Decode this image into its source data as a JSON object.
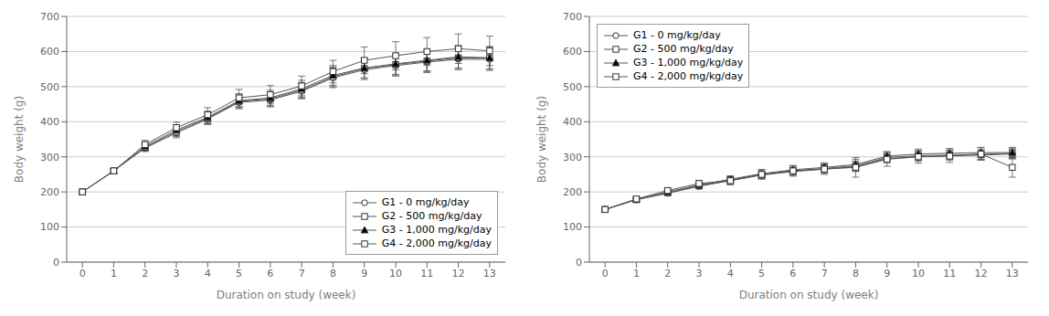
{
  "chart_data": [
    {
      "type": "line",
      "xlabel": "Duration on study (week)",
      "ylabel": "Body weight (g)",
      "x": [
        0,
        1,
        2,
        3,
        4,
        5,
        6,
        7,
        8,
        9,
        10,
        11,
        12,
        13
      ],
      "xlim": [
        -0.5,
        13.5
      ],
      "xticks": [
        0,
        1,
        2,
        3,
        4,
        5,
        6,
        7,
        8,
        9,
        10,
        11,
        12,
        13
      ],
      "ylim": [
        0,
        700
      ],
      "yticks": [
        0,
        100,
        200,
        300,
        400,
        500,
        600,
        700
      ],
      "grid": true,
      "legend": "lower right",
      "series": [
        {
          "name": "G1 - 0 mg/kg/day",
          "color": "#555555",
          "marker": "circle",
          "values": [
            200,
            260,
            325,
            368,
            408,
            455,
            462,
            487,
            525,
            548,
            560,
            570,
            578,
            578
          ],
          "errors": [
            2,
            6,
            10,
            14,
            16,
            18,
            20,
            22,
            28,
            28,
            30,
            30,
            30,
            32
          ]
        },
        {
          "name": "G2 - 500 mg/kg/day",
          "color": "#555555",
          "marker": "square",
          "values": [
            200,
            260,
            327,
            372,
            410,
            458,
            465,
            490,
            528,
            552,
            563,
            573,
            582,
            582
          ],
          "errors": [
            2,
            6,
            10,
            14,
            16,
            18,
            20,
            22,
            28,
            28,
            30,
            30,
            30,
            32
          ]
        },
        {
          "name": "G3 - 1,000 mg/kg/day",
          "color": "#555555",
          "marker": "triangle_filled",
          "values": [
            200,
            260,
            330,
            376,
            413,
            460,
            468,
            494,
            532,
            553,
            565,
            575,
            585,
            582
          ],
          "errors": [
            2,
            6,
            11,
            15,
            17,
            20,
            22,
            24,
            28,
            28,
            30,
            30,
            32,
            32
          ]
        },
        {
          "name": "G4 - 2,000 mg/kg/day",
          "color": "#555555",
          "marker": "square",
          "values": [
            200,
            260,
            335,
            383,
            420,
            468,
            477,
            502,
            543,
            575,
            588,
            600,
            608,
            602
          ],
          "errors": [
            2,
            6,
            12,
            16,
            20,
            24,
            26,
            28,
            32,
            38,
            40,
            40,
            42,
            42
          ]
        }
      ]
    },
    {
      "type": "line",
      "xlabel": "Duration on study (week)",
      "ylabel": "Body weight (g)",
      "x": [
        0,
        1,
        2,
        3,
        4,
        5,
        6,
        7,
        8,
        9,
        10,
        11,
        12,
        13
      ],
      "xlim": [
        -0.5,
        13.5
      ],
      "xticks": [
        0,
        1,
        2,
        3,
        4,
        5,
        6,
        7,
        8,
        9,
        10,
        11,
        12,
        13
      ],
      "ylim": [
        0,
        700
      ],
      "yticks": [
        0,
        100,
        200,
        300,
        400,
        500,
        600,
        700
      ],
      "grid": true,
      "legend": "upper left",
      "series": [
        {
          "name": "G1 - 0 mg/kg/day",
          "color": "#555555",
          "marker": "circle",
          "values": [
            150,
            178,
            196,
            216,
            232,
            248,
            258,
            265,
            272,
            295,
            300,
            303,
            305,
            308
          ],
          "errors": [
            2,
            5,
            6,
            8,
            9,
            10,
            11,
            12,
            14,
            12,
            12,
            12,
            13,
            14
          ]
        },
        {
          "name": "G2 - 500 mg/kg/day",
          "color": "#555555",
          "marker": "square",
          "values": [
            150,
            178,
            198,
            218,
            234,
            250,
            260,
            267,
            274,
            298,
            303,
            305,
            307,
            310
          ],
          "errors": [
            2,
            5,
            6,
            8,
            9,
            10,
            11,
            12,
            14,
            12,
            13,
            13,
            14,
            15
          ]
        },
        {
          "name": "G3 - 1,000 mg/kg/day",
          "color": "#555555",
          "marker": "triangle_filled",
          "values": [
            150,
            178,
            200,
            220,
            236,
            252,
            263,
            270,
            278,
            302,
            308,
            310,
            312,
            312
          ],
          "errors": [
            2,
            5,
            7,
            8,
            10,
            11,
            12,
            13,
            15,
            13,
            14,
            14,
            15,
            15
          ]
        },
        {
          "name": "G4 - 2,000 mg/kg/day",
          "color": "#555555",
          "marker": "square",
          "values": [
            150,
            180,
            204,
            224,
            232,
            250,
            260,
            265,
            270,
            293,
            300,
            302,
            308,
            270
          ],
          "errors": [
            2,
            5,
            7,
            9,
            12,
            14,
            15,
            15,
            28,
            20,
            18,
            18,
            18,
            28
          ]
        }
      ]
    }
  ]
}
